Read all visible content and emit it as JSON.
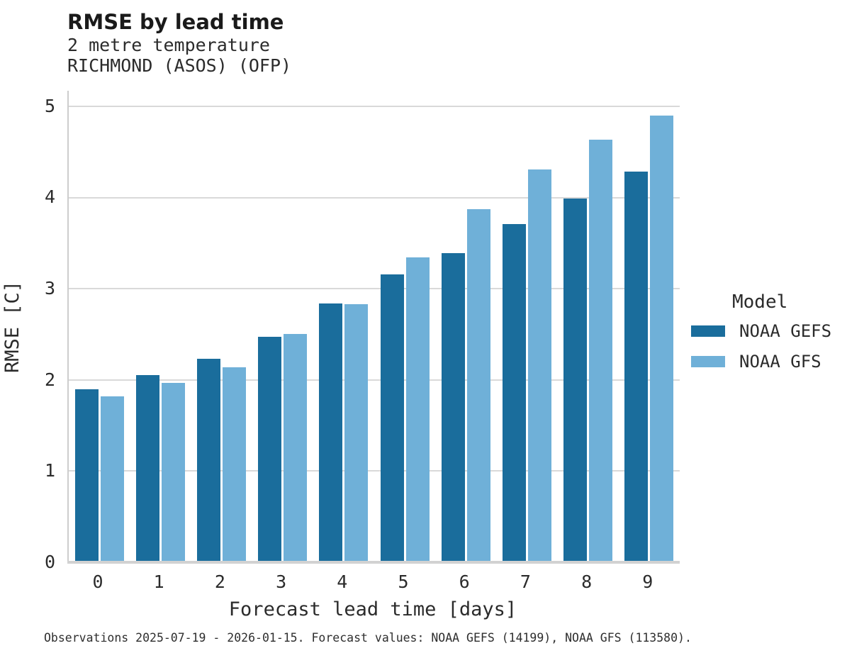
{
  "header": {
    "title": "RMSE by lead time",
    "subtitle_line1": "2 metre temperature",
    "subtitle_line2": "RICHMOND (ASOS) (OFP)"
  },
  "legend": {
    "title": "Model",
    "items": [
      {
        "label": "NOAA GEFS",
        "color": "#1a6d9c"
      },
      {
        "label": "NOAA GFS",
        "color": "#6fb0d8"
      }
    ]
  },
  "caption": "Observations 2025-07-19 - 2026-01-15. Forecast values: NOAA GEFS (14199), NOAA GFS (113580).",
  "chart_data": {
    "type": "bar",
    "title": "RMSE by lead time",
    "subtitle": [
      "2 metre temperature",
      "RICHMOND (ASOS) (OFP)"
    ],
    "xlabel": "Forecast lead time [days]",
    "ylabel": "RMSE [C]",
    "categories": [
      "0",
      "1",
      "2",
      "3",
      "4",
      "5",
      "6",
      "7",
      "8",
      "9"
    ],
    "series": [
      {
        "name": "NOAA GEFS",
        "color": "#1a6d9c",
        "values": [
          1.9,
          2.05,
          2.23,
          2.47,
          2.84,
          3.16,
          3.39,
          3.71,
          3.99,
          4.28
        ]
      },
      {
        "name": "NOAA GFS",
        "color": "#6fb0d8",
        "values": [
          1.82,
          1.97,
          2.14,
          2.5,
          2.83,
          3.34,
          3.87,
          4.31,
          4.63,
          4.9
        ]
      }
    ],
    "ylim": [
      0,
      5.17
    ],
    "yticks": [
      0,
      1,
      2,
      3,
      4,
      5
    ],
    "grid": true,
    "legend_position": "right",
    "legend_title": "Model"
  }
}
